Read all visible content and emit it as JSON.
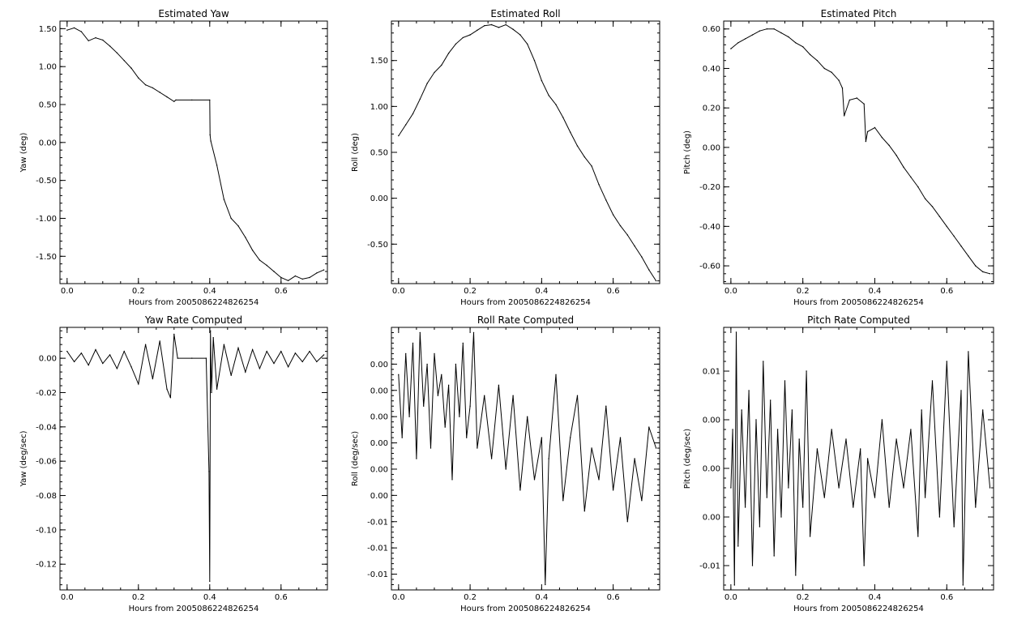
{
  "chart_data": [
    {
      "type": "line",
      "title": "Estimated Yaw",
      "xlabel": "Hours from 2005086224826254",
      "ylabel": "Yaw (deg)",
      "xlim": [
        -0.02,
        0.73
      ],
      "ylim": [
        -1.86,
        1.6
      ],
      "x_ticks": [
        0.0,
        0.2,
        0.4,
        0.6
      ],
      "x_tick_labels": [
        "0.0",
        "0.2",
        "0.4",
        "0.6"
      ],
      "y_ticks": [
        1.5,
        1.0,
        0.5,
        0.0,
        -0.5,
        -1.0,
        -1.5
      ],
      "y_tick_labels": [
        "1.50",
        "1.00",
        "0.50",
        "0.00",
        "-0.50",
        "-1.00",
        "-1.50"
      ],
      "grid": false,
      "series": [
        {
          "x": [
            0.0,
            0.02,
            0.04,
            0.06,
            0.08,
            0.1,
            0.12,
            0.14,
            0.16,
            0.18,
            0.2,
            0.22,
            0.24,
            0.26,
            0.28,
            0.3,
            0.305,
            0.35,
            0.4,
            0.401,
            0.403,
            0.42,
            0.44,
            0.46,
            0.48,
            0.5,
            0.52,
            0.54,
            0.56,
            0.58,
            0.6,
            0.62,
            0.64,
            0.66,
            0.68,
            0.7,
            0.72
          ],
          "y": [
            1.48,
            1.51,
            1.46,
            1.34,
            1.38,
            1.35,
            1.27,
            1.18,
            1.08,
            0.98,
            0.85,
            0.76,
            0.72,
            0.66,
            0.6,
            0.54,
            0.56,
            0.56,
            0.56,
            0.1,
            0.02,
            -0.3,
            -0.75,
            -1.0,
            -1.1,
            -1.25,
            -1.42,
            -1.55,
            -1.62,
            -1.7,
            -1.78,
            -1.82,
            -1.76,
            -1.8,
            -1.78,
            -1.72,
            -1.68
          ]
        }
      ]
    },
    {
      "type": "line",
      "title": "Estimated Roll",
      "xlabel": "Hours from 2005086224826254",
      "ylabel": "Roll (deg)",
      "xlim": [
        -0.02,
        0.73
      ],
      "ylim": [
        -0.93,
        1.93
      ],
      "x_ticks": [
        0.0,
        0.2,
        0.4,
        0.6
      ],
      "x_tick_labels": [
        "0.0",
        "0.2",
        "0.4",
        "0.6"
      ],
      "y_ticks": [
        1.5,
        1.0,
        0.5,
        0.0,
        -0.5
      ],
      "y_tick_labels": [
        "1.50",
        "1.00",
        "0.50",
        "0.00",
        "-0.50"
      ],
      "grid": false,
      "series": [
        {
          "x": [
            0.0,
            0.02,
            0.04,
            0.06,
            0.08,
            0.1,
            0.12,
            0.14,
            0.16,
            0.18,
            0.2,
            0.22,
            0.24,
            0.26,
            0.28,
            0.3,
            0.32,
            0.34,
            0.36,
            0.38,
            0.4,
            0.42,
            0.44,
            0.46,
            0.48,
            0.5,
            0.52,
            0.54,
            0.56,
            0.58,
            0.6,
            0.62,
            0.64,
            0.66,
            0.68,
            0.7,
            0.72
          ],
          "y": [
            0.68,
            0.8,
            0.92,
            1.08,
            1.25,
            1.37,
            1.45,
            1.58,
            1.68,
            1.75,
            1.78,
            1.83,
            1.88,
            1.89,
            1.86,
            1.89,
            1.84,
            1.78,
            1.68,
            1.5,
            1.28,
            1.12,
            1.02,
            0.88,
            0.72,
            0.57,
            0.45,
            0.35,
            0.15,
            -0.02,
            -0.18,
            -0.3,
            -0.4,
            -0.52,
            -0.64,
            -0.78,
            -0.9
          ]
        }
      ]
    },
    {
      "type": "line",
      "title": "Estimated Pitch",
      "xlabel": "Hours from 2005086224826254",
      "ylabel": "Pitch (deg)",
      "xlim": [
        -0.02,
        0.73
      ],
      "ylim": [
        -0.69,
        0.64
      ],
      "x_ticks": [
        0.0,
        0.2,
        0.4,
        0.6
      ],
      "x_tick_labels": [
        "0.0",
        "0.2",
        "0.4",
        "0.6"
      ],
      "y_ticks": [
        0.6,
        0.4,
        0.2,
        0.0,
        -0.2,
        -0.4,
        -0.6
      ],
      "y_tick_labels": [
        "0.60",
        "0.40",
        "0.20",
        "0.00",
        "-0.20",
        "-0.40",
        "-0.60"
      ],
      "grid": false,
      "series": [
        {
          "x": [
            0.0,
            0.02,
            0.04,
            0.06,
            0.08,
            0.1,
            0.12,
            0.14,
            0.16,
            0.18,
            0.2,
            0.22,
            0.24,
            0.26,
            0.28,
            0.3,
            0.31,
            0.315,
            0.33,
            0.35,
            0.37,
            0.375,
            0.38,
            0.4,
            0.42,
            0.44,
            0.46,
            0.48,
            0.5,
            0.52,
            0.54,
            0.56,
            0.58,
            0.6,
            0.62,
            0.64,
            0.66,
            0.68,
            0.7,
            0.72
          ],
          "y": [
            0.5,
            0.53,
            0.55,
            0.57,
            0.59,
            0.6,
            0.6,
            0.58,
            0.56,
            0.53,
            0.51,
            0.47,
            0.44,
            0.4,
            0.38,
            0.34,
            0.3,
            0.16,
            0.24,
            0.25,
            0.22,
            0.03,
            0.08,
            0.1,
            0.05,
            0.01,
            -0.04,
            -0.1,
            -0.15,
            -0.2,
            -0.26,
            -0.3,
            -0.35,
            -0.4,
            -0.45,
            -0.5,
            -0.55,
            -0.6,
            -0.63,
            -0.64
          ]
        }
      ]
    },
    {
      "type": "line",
      "title": "Yaw Rate Computed",
      "xlabel": "Hours from 2005086224826254",
      "ylabel": "Yaw (deg/sec)",
      "xlim": [
        -0.02,
        0.73
      ],
      "ylim": [
        -0.135,
        0.018
      ],
      "x_ticks": [
        0.0,
        0.2,
        0.4,
        0.6
      ],
      "x_tick_labels": [
        "0.0",
        "0.2",
        "0.4",
        "0.6"
      ],
      "y_ticks": [
        0.0,
        -0.02,
        -0.04,
        -0.06,
        -0.08,
        -0.1,
        -0.12
      ],
      "y_tick_labels": [
        "0.00",
        "-0.02",
        "-0.04",
        "-0.06",
        "-0.08",
        "-0.10",
        "-0.12"
      ],
      "grid": false,
      "series": [
        {
          "x": [
            0.0,
            0.02,
            0.04,
            0.06,
            0.08,
            0.1,
            0.12,
            0.14,
            0.16,
            0.18,
            0.2,
            0.22,
            0.24,
            0.26,
            0.28,
            0.29,
            0.3,
            0.31,
            0.35,
            0.39,
            0.398,
            0.4,
            0.402,
            0.405,
            0.41,
            0.42,
            0.44,
            0.46,
            0.48,
            0.5,
            0.52,
            0.54,
            0.56,
            0.58,
            0.6,
            0.62,
            0.64,
            0.66,
            0.68,
            0.7,
            0.72
          ],
          "y": [
            0.004,
            -0.002,
            0.003,
            -0.004,
            0.005,
            -0.003,
            0.002,
            -0.006,
            0.004,
            -0.005,
            -0.015,
            0.008,
            -0.012,
            0.01,
            -0.018,
            -0.023,
            0.014,
            0.0,
            0.0,
            0.0,
            -0.066,
            -0.13,
            0.016,
            -0.02,
            0.012,
            -0.018,
            0.008,
            -0.01,
            0.006,
            -0.008,
            0.005,
            -0.006,
            0.004,
            -0.003,
            0.004,
            -0.005,
            0.003,
            -0.002,
            0.004,
            -0.002,
            0.002
          ]
        }
      ]
    },
    {
      "type": "line",
      "title": "Roll Rate Computed",
      "xlabel": "Hours from 2005086224826254",
      "ylabel": "Roll (deg/sec)",
      "xlim": [
        -0.02,
        0.73
      ],
      "ylim": [
        -0.0165,
        0.0085
      ],
      "x_ticks": [
        0.0,
        0.2,
        0.4,
        0.6
      ],
      "x_tick_labels": [
        "0.0",
        "0.2",
        "0.4",
        "0.6"
      ],
      "y_ticks": [
        0.005,
        0.0025,
        0.0,
        -0.0025,
        -0.005,
        -0.0075,
        -0.01,
        -0.0125,
        -0.015
      ],
      "y_tick_labels": [
        "0.00",
        "0.00",
        "0.00",
        "0.00",
        "0.00",
        "0.00",
        "-0.01",
        "-0.01",
        "-0.01"
      ],
      "grid": false,
      "series": [
        {
          "x": [
            0.0,
            0.01,
            0.02,
            0.03,
            0.04,
            0.05,
            0.06,
            0.07,
            0.08,
            0.09,
            0.1,
            0.11,
            0.12,
            0.13,
            0.14,
            0.15,
            0.16,
            0.17,
            0.18,
            0.19,
            0.2,
            0.21,
            0.22,
            0.24,
            0.26,
            0.28,
            0.3,
            0.32,
            0.34,
            0.36,
            0.38,
            0.4,
            0.41,
            0.42,
            0.44,
            0.46,
            0.48,
            0.5,
            0.52,
            0.54,
            0.56,
            0.58,
            0.6,
            0.62,
            0.64,
            0.66,
            0.68,
            0.7,
            0.72
          ],
          "y": [
            0.004,
            -0.002,
            0.006,
            0.0,
            0.007,
            -0.004,
            0.008,
            0.001,
            0.005,
            -0.003,
            0.006,
            0.002,
            0.004,
            -0.001,
            0.003,
            -0.006,
            0.005,
            0.0,
            0.007,
            -0.002,
            0.001,
            0.008,
            -0.003,
            0.002,
            -0.004,
            0.003,
            -0.005,
            0.002,
            -0.007,
            0.0,
            -0.006,
            -0.002,
            -0.016,
            -0.004,
            0.004,
            -0.008,
            -0.002,
            0.002,
            -0.009,
            -0.003,
            -0.006,
            0.001,
            -0.007,
            -0.002,
            -0.01,
            -0.004,
            -0.008,
            -0.001,
            -0.003
          ]
        }
      ]
    },
    {
      "type": "line",
      "title": "Pitch Rate Computed",
      "xlabel": "Hours from 2005086224826254",
      "ylabel": "Pitch (deg/sec)",
      "xlim": [
        -0.02,
        0.73
      ],
      "ylim": [
        -0.0125,
        0.0145
      ],
      "x_ticks": [
        0.0,
        0.2,
        0.4,
        0.6
      ],
      "x_tick_labels": [
        "0.0",
        "0.2",
        "0.4",
        "0.6"
      ],
      "y_ticks": [
        0.01,
        0.005,
        0.0,
        -0.005,
        -0.01
      ],
      "y_tick_labels": [
        "0.01",
        "0.00",
        "0.00",
        "0.00",
        "-0.01"
      ],
      "grid": false,
      "series": [
        {
          "x": [
            0.0,
            0.005,
            0.01,
            0.015,
            0.02,
            0.03,
            0.04,
            0.05,
            0.06,
            0.07,
            0.08,
            0.09,
            0.1,
            0.11,
            0.12,
            0.13,
            0.14,
            0.15,
            0.16,
            0.17,
            0.18,
            0.19,
            0.2,
            0.21,
            0.22,
            0.24,
            0.26,
            0.28,
            0.3,
            0.32,
            0.34,
            0.36,
            0.37,
            0.38,
            0.4,
            0.42,
            0.44,
            0.46,
            0.48,
            0.5,
            0.52,
            0.53,
            0.54,
            0.56,
            0.58,
            0.6,
            0.62,
            0.64,
            0.645,
            0.66,
            0.68,
            0.7,
            0.72
          ],
          "y": [
            -0.002,
            0.004,
            -0.012,
            0.014,
            -0.008,
            0.006,
            -0.004,
            0.008,
            -0.01,
            0.005,
            -0.006,
            0.011,
            -0.003,
            0.007,
            -0.009,
            0.004,
            -0.005,
            0.009,
            -0.002,
            0.006,
            -0.011,
            0.003,
            -0.004,
            0.01,
            -0.007,
            0.002,
            -0.003,
            0.004,
            -0.002,
            0.003,
            -0.004,
            0.002,
            -0.01,
            0.001,
            -0.003,
            0.005,
            -0.004,
            0.003,
            -0.002,
            0.004,
            -0.007,
            0.006,
            -0.003,
            0.009,
            -0.005,
            0.011,
            -0.006,
            0.008,
            -0.012,
            0.012,
            -0.004,
            0.006,
            -0.002
          ]
        }
      ]
    }
  ]
}
